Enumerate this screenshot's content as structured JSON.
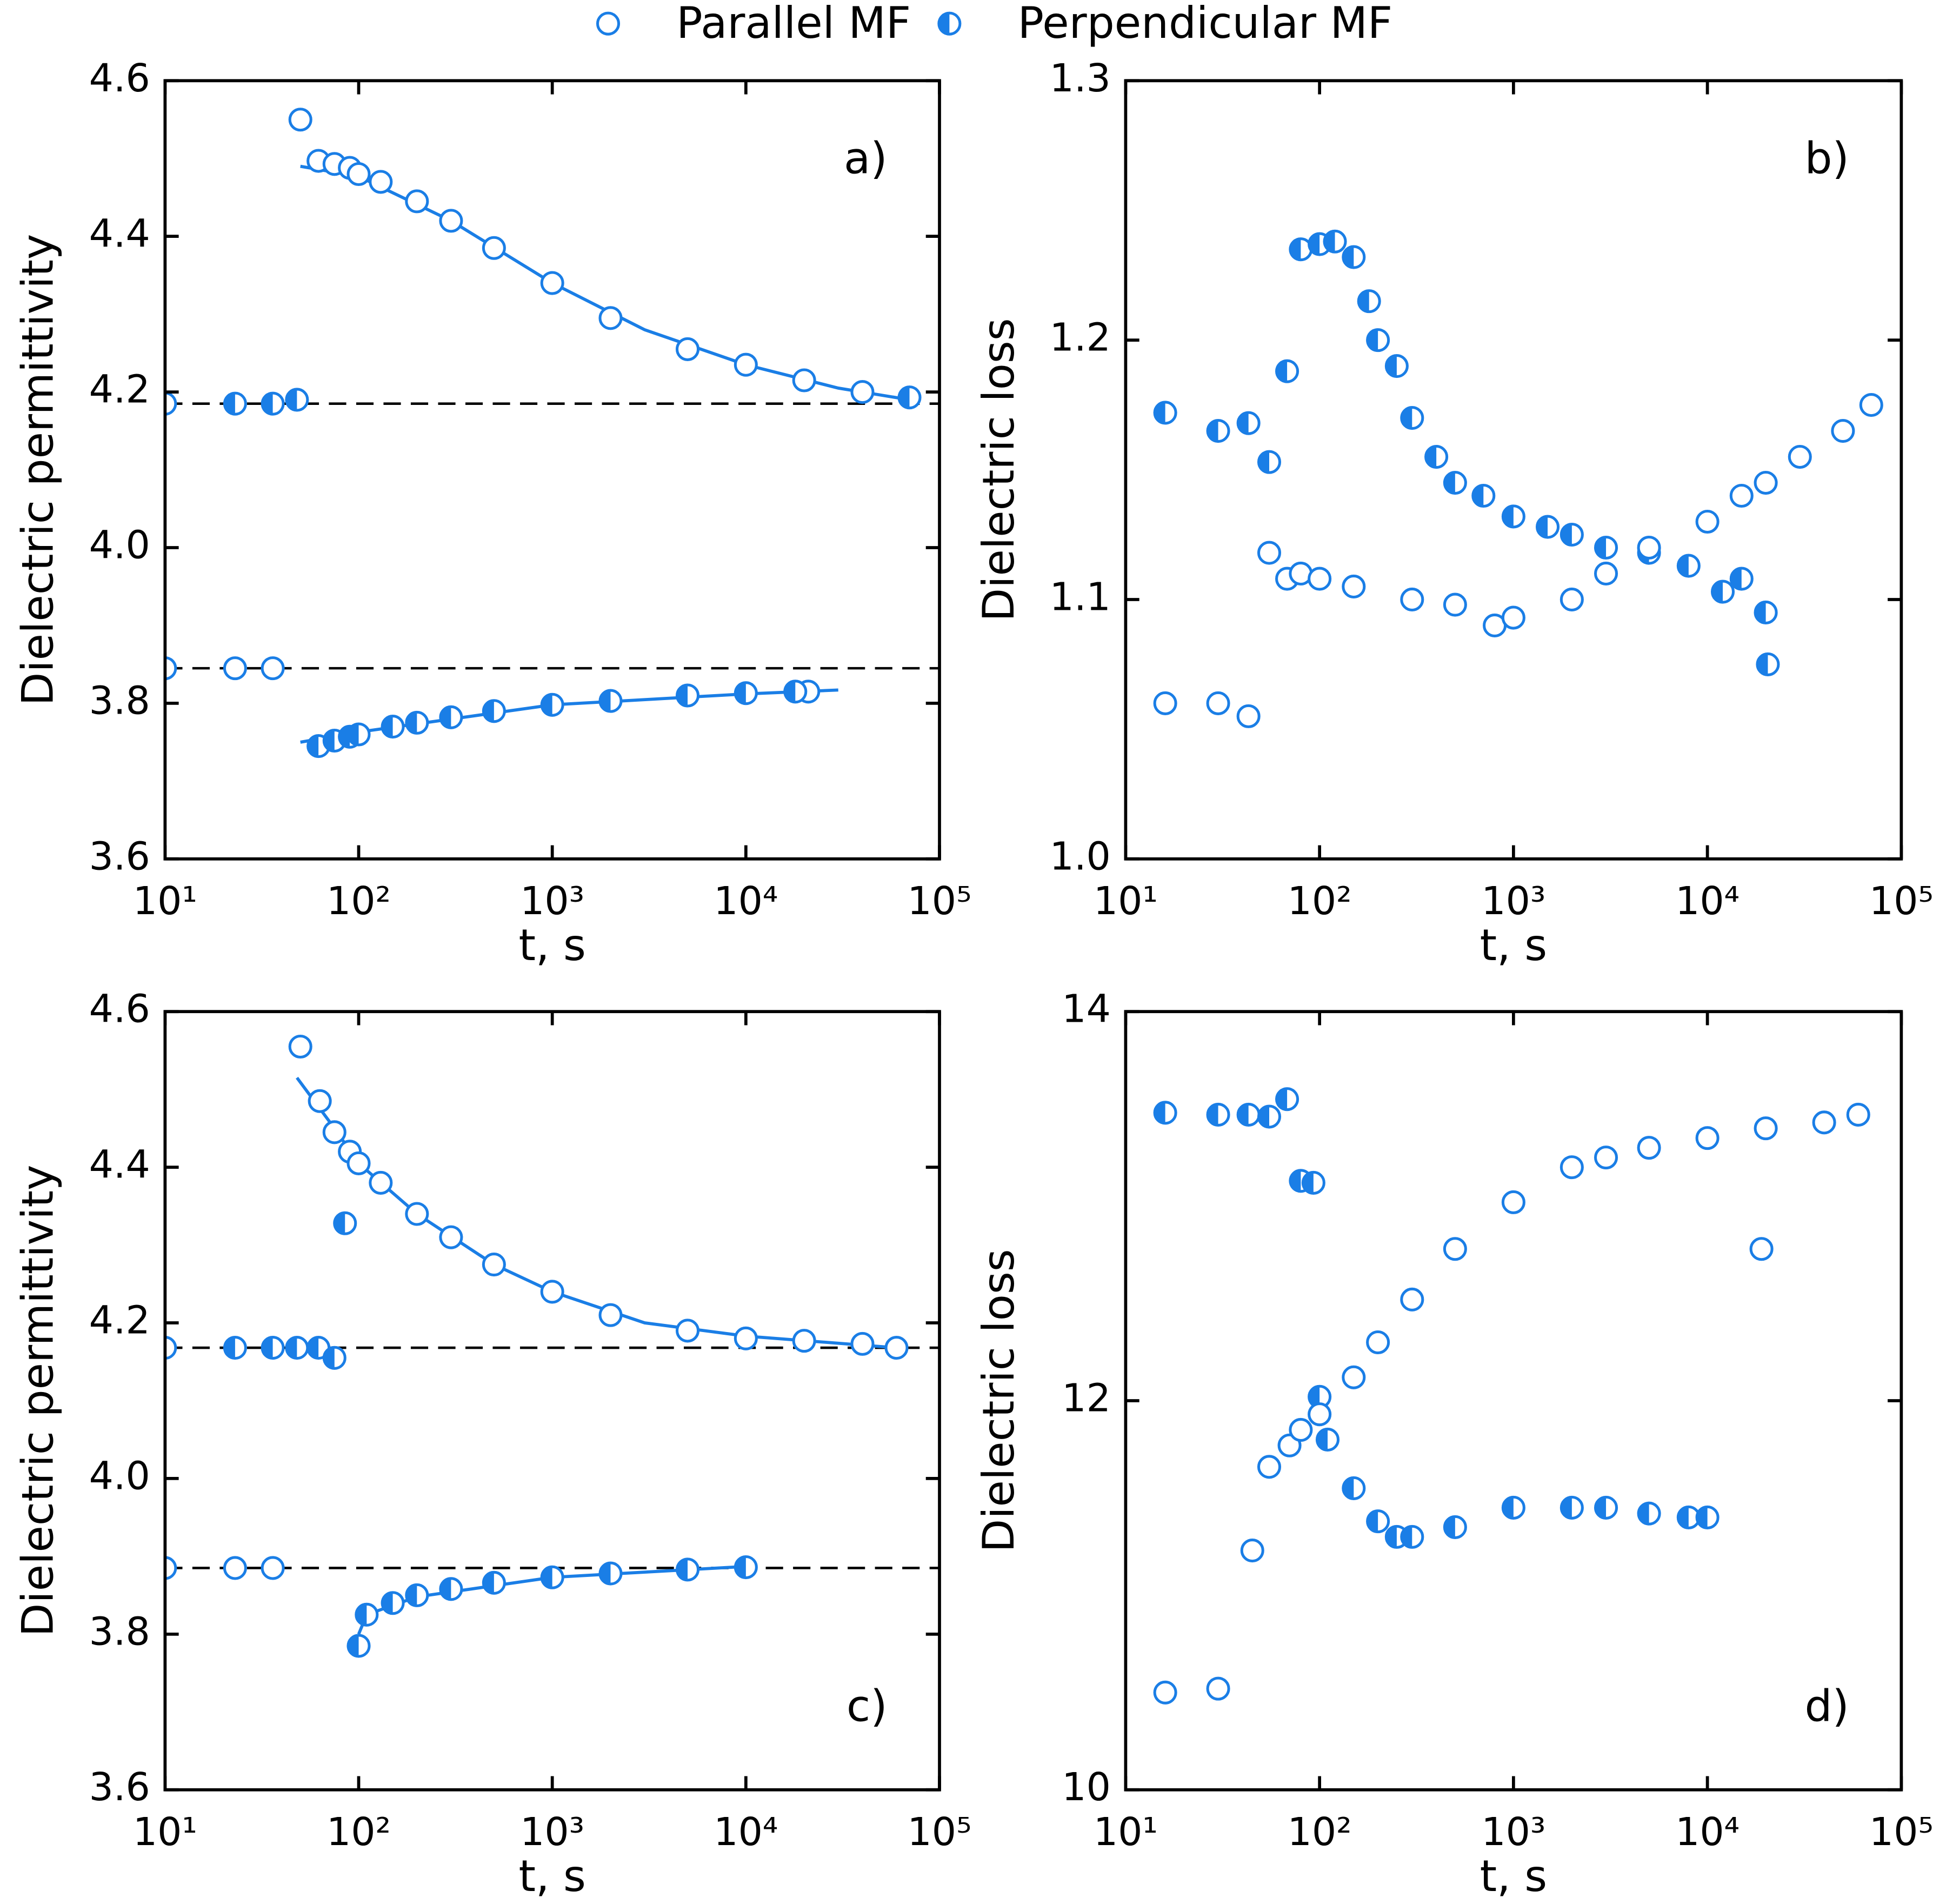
{
  "chart_data": [
    {
      "type": "scatter",
      "log_x": true,
      "xlabel": "t, s",
      "ylabel": "Dielectric permittivity",
      "panel_label": "a)",
      "panel_label_corner": "top-right",
      "xlim": [
        10,
        100000
      ],
      "ylim": [
        3.6,
        4.6
      ],
      "xticks": [
        {
          "value": 10,
          "label": "10¹"
        },
        {
          "value": 100,
          "label": "10²"
        },
        {
          "value": 1000,
          "label": "10³"
        },
        {
          "value": 10000,
          "label": "10⁴"
        },
        {
          "value": 100000,
          "label": "10⁵"
        }
      ],
      "yticks": [
        3.6,
        3.8,
        {
          "value": 4,
          "label": "4.0"
        },
        4.2,
        4.4,
        4.6
      ],
      "hlines": [
        4.185,
        3.845
      ],
      "series": [
        {
          "name": "Parallel MF",
          "marker": "open",
          "color": "#1a7ee6",
          "x": [
            10,
            23,
            36,
            50,
            62,
            75,
            90,
            100,
            130,
            200,
            300,
            500,
            1000,
            2000,
            5000,
            10000,
            20000,
            40000,
            21000
          ],
          "values": [
            3.845,
            3.845,
            3.845,
            4.55,
            4.497,
            4.493,
            4.488,
            4.48,
            4.47,
            4.445,
            4.42,
            4.385,
            4.34,
            4.295,
            4.255,
            4.235,
            4.215,
            4.2,
            3.815
          ]
        },
        {
          "name": "Perpendicular MF",
          "marker": "half",
          "color": "#1a7ee6",
          "x": [
            10,
            23,
            36,
            48,
            62,
            75,
            90,
            100,
            150,
            200,
            300,
            500,
            1000,
            2000,
            5000,
            10000,
            18000,
            70000
          ],
          "values": [
            4.185,
            4.185,
            4.185,
            4.19,
            3.745,
            3.752,
            3.757,
            3.76,
            3.77,
            3.775,
            3.782,
            3.79,
            3.798,
            3.803,
            3.81,
            3.813,
            3.815,
            4.193
          ]
        }
      ],
      "fits": [
        {
          "x": [
            50,
            100,
            300,
            1000,
            3000,
            10000,
            30000,
            70000
          ],
          "values": [
            4.49,
            4.477,
            4.42,
            4.34,
            4.28,
            4.235,
            4.205,
            4.19
          ]
        },
        {
          "x": [
            50,
            100,
            1000,
            10000,
            30000
          ],
          "values": [
            3.75,
            3.763,
            3.798,
            3.812,
            3.817
          ]
        }
      ]
    },
    {
      "type": "scatter",
      "log_x": true,
      "xlabel": "t, s",
      "ylabel": "Dielectric loss",
      "panel_label": "b)",
      "panel_label_corner": "top-right",
      "xlim": [
        10,
        100000
      ],
      "ylim": [
        1.0,
        1.3
      ],
      "xticks": [
        {
          "value": 10,
          "label": "10¹"
        },
        {
          "value": 100,
          "label": "10²"
        },
        {
          "value": 1000,
          "label": "10³"
        },
        {
          "value": 10000,
          "label": "10⁴"
        },
        {
          "value": 100000,
          "label": "10⁵"
        }
      ],
      "yticks": [
        {
          "value": 1,
          "label": "1.0"
        },
        1.1,
        1.2,
        1.3
      ],
      "series": [
        {
          "marker": "half",
          "color": "#1a7ee6",
          "x": [
            16,
            30,
            43,
            55,
            68,
            80,
            100,
            120,
            150,
            180,
            200,
            250,
            300,
            400,
            500,
            700,
            1000,
            1500,
            2000,
            3000,
            5000,
            8000,
            12000,
            15000,
            20000,
            20500
          ],
          "values": [
            1.172,
            1.165,
            1.168,
            1.153,
            1.188,
            1.235,
            1.237,
            1.238,
            1.232,
            1.215,
            1.2,
            1.19,
            1.17,
            1.155,
            1.145,
            1.14,
            1.132,
            1.128,
            1.125,
            1.12,
            1.118,
            1.113,
            1.103,
            1.108,
            1.095,
            1.075
          ]
        },
        {
          "marker": "open",
          "color": "#1a7ee6",
          "x": [
            16,
            30,
            43,
            55,
            68,
            80,
            100,
            150,
            300,
            500,
            800,
            1000,
            2000,
            3000,
            5000,
            10000,
            15000,
            20000,
            30000,
            50000,
            70000
          ],
          "values": [
            1.06,
            1.06,
            1.055,
            1.118,
            1.108,
            1.11,
            1.108,
            1.105,
            1.1,
            1.098,
            1.09,
            1.093,
            1.1,
            1.11,
            1.12,
            1.13,
            1.14,
            1.145,
            1.155,
            1.165,
            1.175
          ]
        }
      ]
    },
    {
      "type": "scatter",
      "log_x": true,
      "xlabel": "t, s",
      "ylabel": "Dielectric permittivity",
      "panel_label": "c)",
      "panel_label_corner": "bottom-right",
      "xlim": [
        10,
        100000
      ],
      "ylim": [
        3.6,
        4.6
      ],
      "xticks": [
        {
          "value": 10,
          "label": "10¹"
        },
        {
          "value": 100,
          "label": "10²"
        },
        {
          "value": 1000,
          "label": "10³"
        },
        {
          "value": 10000,
          "label": "10⁴"
        },
        {
          "value": 100000,
          "label": "10⁵"
        }
      ],
      "yticks": [
        3.6,
        3.8,
        {
          "value": 4,
          "label": "4.0"
        },
        4.2,
        4.4,
        4.6
      ],
      "hlines": [
        4.168,
        3.885
      ],
      "series": [
        {
          "marker": "open",
          "color": "#1a7ee6",
          "x": [
            10,
            23,
            36,
            50,
            63,
            75,
            90,
            100,
            130,
            200,
            300,
            500,
            1000,
            2000,
            5000,
            10000,
            20000,
            40000,
            60000
          ],
          "values": [
            3.885,
            3.885,
            3.885,
            4.555,
            4.485,
            4.445,
            4.42,
            4.405,
            4.38,
            4.34,
            4.31,
            4.275,
            4.24,
            4.21,
            4.19,
            4.18,
            4.177,
            4.173,
            4.168
          ]
        },
        {
          "marker": "half",
          "color": "#1a7ee6",
          "x": [
            10,
            23,
            36,
            48,
            62,
            75,
            85,
            100,
            110,
            150,
            200,
            300,
            500,
            1000,
            2000,
            5000,
            10000
          ],
          "values": [
            4.168,
            4.168,
            4.168,
            4.168,
            4.168,
            4.155,
            4.328,
            3.785,
            3.825,
            3.84,
            3.85,
            3.858,
            3.866,
            3.873,
            3.878,
            3.883,
            3.886
          ]
        }
      ],
      "fits": [
        {
          "x": [
            48,
            75,
            100,
            200,
            500,
            1000,
            3000,
            10000,
            60000
          ],
          "values": [
            4.515,
            4.45,
            4.405,
            4.34,
            4.275,
            4.24,
            4.2,
            4.183,
            4.168
          ]
        },
        {
          "x": [
            100,
            110,
            200,
            1000,
            10000
          ],
          "values": [
            3.8,
            3.825,
            3.848,
            3.873,
            3.887
          ]
        }
      ]
    },
    {
      "type": "scatter",
      "log_x": true,
      "xlabel": "t, s",
      "ylabel": "Dielectric loss",
      "panel_label": "d)",
      "panel_label_corner": "bottom-right",
      "xlim": [
        10,
        100000
      ],
      "ylim": [
        10,
        14
      ],
      "xticks": [
        {
          "value": 10,
          "label": "10¹"
        },
        {
          "value": 100,
          "label": "10²"
        },
        {
          "value": 1000,
          "label": "10³"
        },
        {
          "value": 10000,
          "label": "10⁴"
        },
        {
          "value": 100000,
          "label": "10⁵"
        }
      ],
      "yticks": [
        10,
        12,
        14
      ],
      "series": [
        {
          "marker": "half",
          "color": "#1a7ee6",
          "x": [
            16,
            30,
            43,
            55,
            68,
            80,
            93,
            100,
            110,
            150,
            200,
            250,
            300,
            500,
            1000,
            2000,
            3000,
            5000,
            8000,
            10000
          ],
          "values": [
            13.48,
            13.47,
            13.47,
            13.46,
            13.55,
            13.13,
            13.12,
            12.02,
            11.8,
            11.55,
            11.38,
            11.3,
            11.3,
            11.35,
            11.45,
            11.45,
            11.45,
            11.42,
            11.4,
            11.4
          ]
        },
        {
          "marker": "open",
          "color": "#1a7ee6",
          "x": [
            16,
            30,
            45,
            55,
            70,
            80,
            100,
            150,
            200,
            300,
            500,
            1000,
            2000,
            3000,
            5000,
            10000,
            20000,
            19000,
            40000,
            60000
          ],
          "values": [
            10.5,
            10.52,
            11.23,
            11.66,
            11.77,
            11.85,
            11.93,
            12.12,
            12.3,
            12.52,
            12.78,
            13.02,
            13.2,
            13.25,
            13.3,
            13.35,
            13.4,
            12.78,
            13.43,
            13.47
          ]
        }
      ]
    }
  ]
}
